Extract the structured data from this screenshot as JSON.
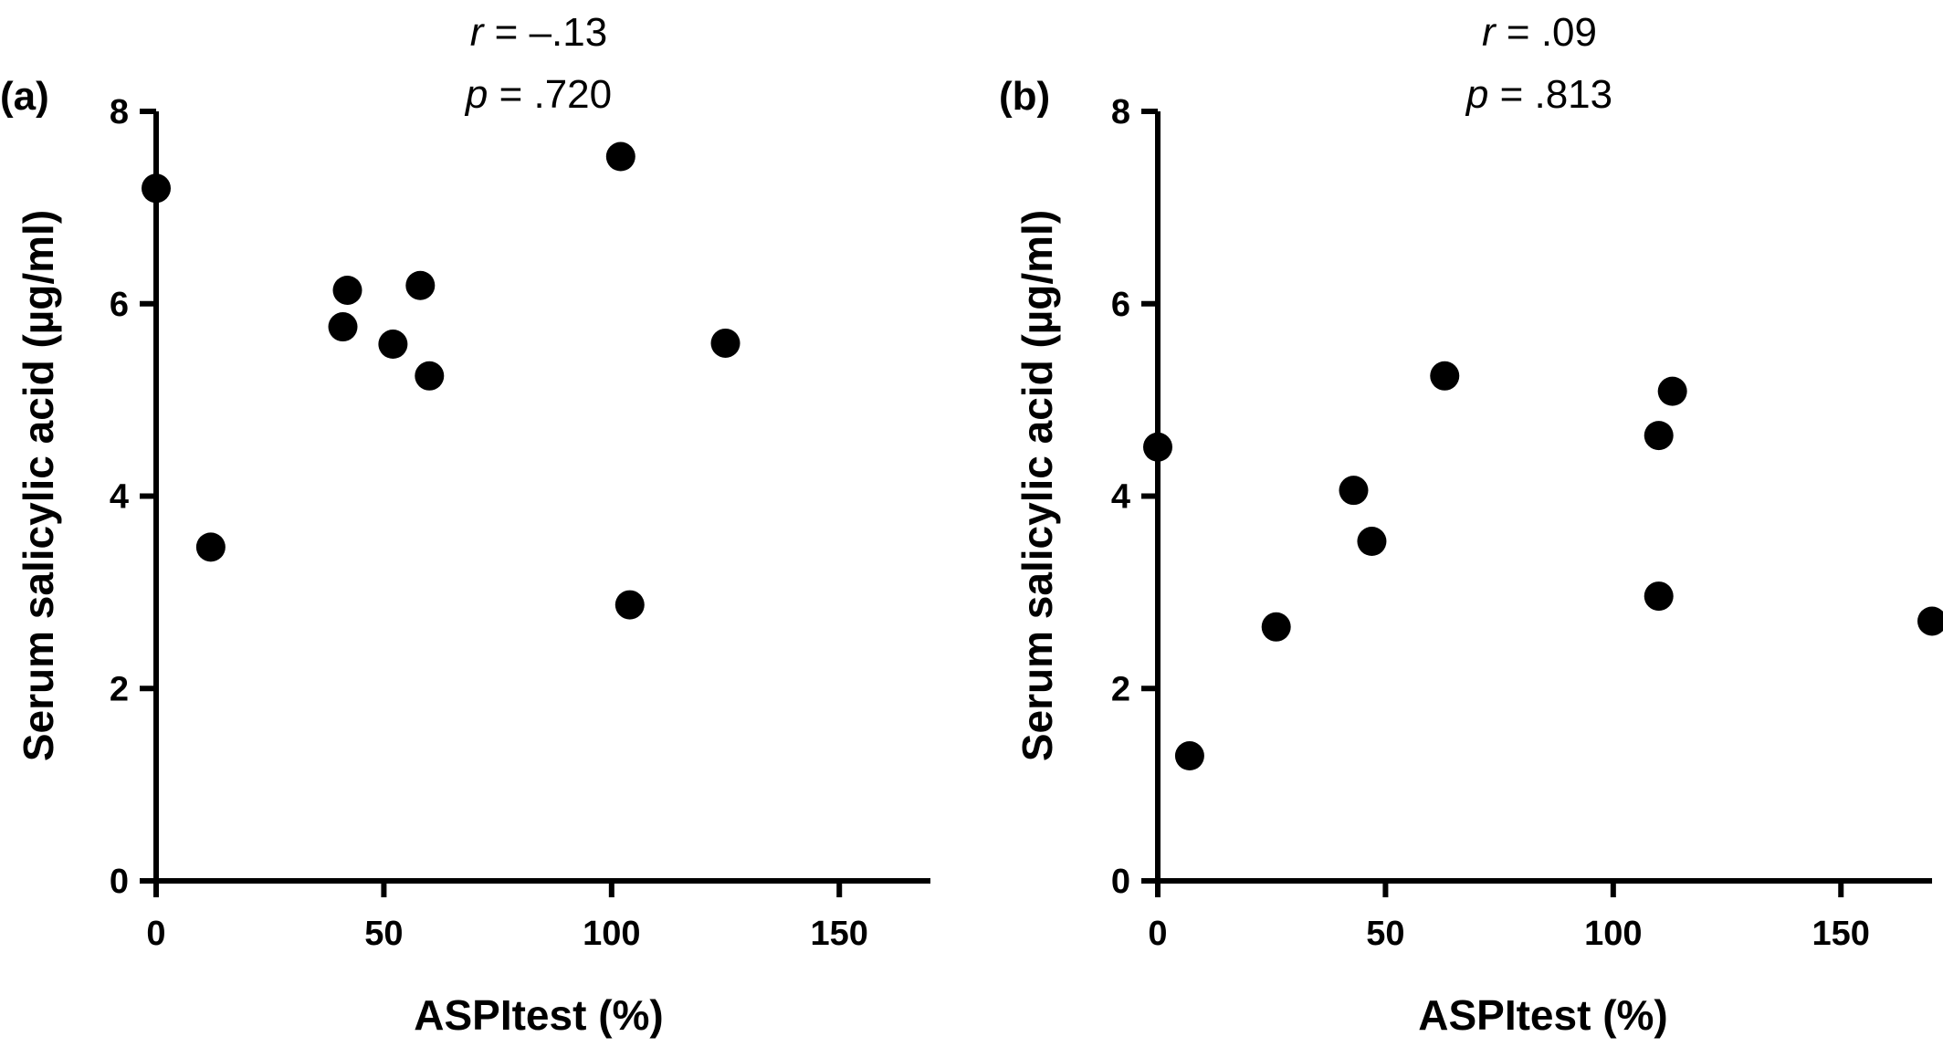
{
  "chart_data": [
    {
      "type": "scatter",
      "panel_label": "(a)",
      "stats": {
        "r_symbol": "r",
        "r_value": " = –.13",
        "p_symbol": "p",
        "p_value": " = .720"
      },
      "xlabel": "ASPItest (%)",
      "ylabel": "Serum salicylic acid (µg/ml)",
      "xlim": [
        0,
        170
      ],
      "ylim": [
        0,
        8
      ],
      "xticks": [
        0,
        50,
        100,
        150
      ],
      "yticks": [
        0,
        2,
        4,
        6,
        8
      ],
      "grid": false,
      "points": [
        {
          "x": 0,
          "y": 7.2
        },
        {
          "x": 12,
          "y": 3.47
        },
        {
          "x": 41,
          "y": 5.76
        },
        {
          "x": 42,
          "y": 6.14
        },
        {
          "x": 52,
          "y": 5.58
        },
        {
          "x": 58,
          "y": 6.19
        },
        {
          "x": 60,
          "y": 5.25
        },
        {
          "x": 102,
          "y": 7.53
        },
        {
          "x": 104,
          "y": 2.87
        },
        {
          "x": 125,
          "y": 5.59
        }
      ]
    },
    {
      "type": "scatter",
      "panel_label": "(b)",
      "stats": {
        "r_symbol": "r",
        "r_value": " = .09",
        "p_symbol": "p",
        "p_value": " = .813"
      },
      "xlabel": "ASPItest (%)",
      "ylabel": "Serum salicylic acid (µg/ml)",
      "xlim": [
        0,
        170
      ],
      "ylim": [
        0,
        8
      ],
      "xticks": [
        0,
        50,
        100,
        150
      ],
      "yticks": [
        0,
        2,
        4,
        6,
        8
      ],
      "grid": false,
      "points": [
        {
          "x": 0,
          "y": 4.51
        },
        {
          "x": 7,
          "y": 1.3
        },
        {
          "x": 26,
          "y": 2.64
        },
        {
          "x": 43,
          "y": 4.06
        },
        {
          "x": 47,
          "y": 3.53
        },
        {
          "x": 63,
          "y": 5.25
        },
        {
          "x": 110,
          "y": 4.63
        },
        {
          "x": 110,
          "y": 2.96
        },
        {
          "x": 113,
          "y": 5.09
        },
        {
          "x": 170,
          "y": 2.7
        }
      ]
    }
  ]
}
